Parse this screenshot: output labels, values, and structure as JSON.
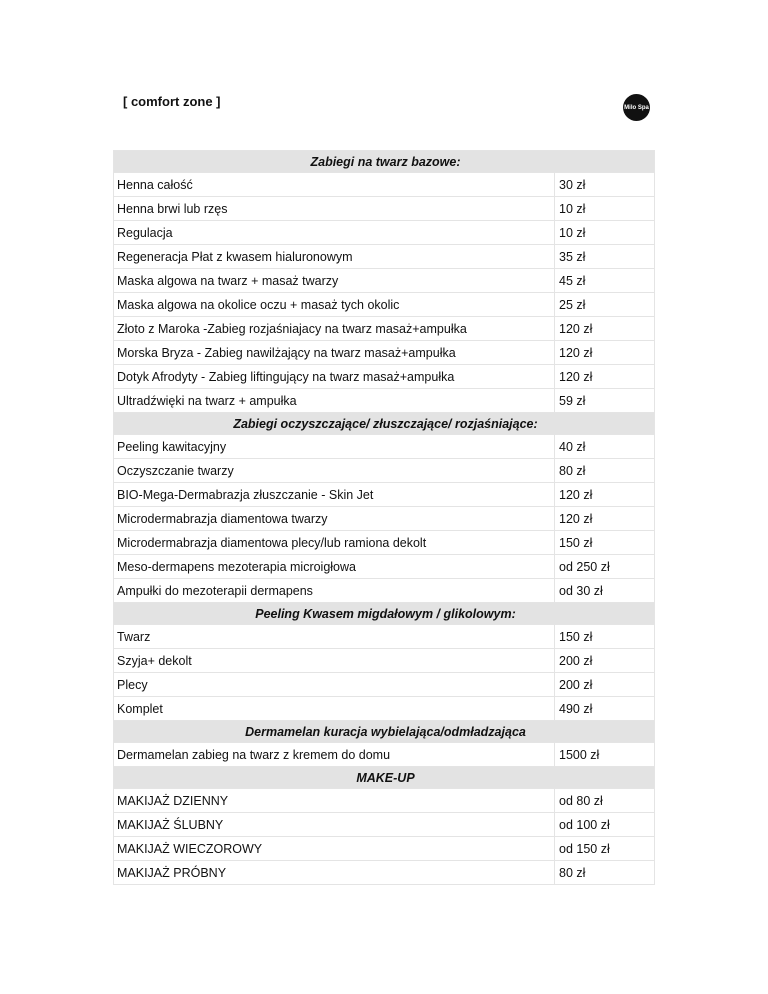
{
  "header": {
    "brand": "[ comfort zone ]",
    "logo": "Milo Spa"
  },
  "sections": [
    {
      "title": "Zabiegi na twarz bazowe:",
      "items": [
        [
          "Henna całość",
          "30 zł"
        ],
        [
          "Henna brwi lub rzęs",
          "10 zł"
        ],
        [
          "Regulacja",
          "10 zł"
        ],
        [
          "Regeneracja Płat z kwasem hialuronowym",
          "35 zł"
        ],
        [
          "Maska algowa na twarz + masaż  twarzy",
          "45 zł"
        ],
        [
          "Maska algowa na okolice oczu + masaż tych okolic",
          "25 zł"
        ],
        [
          "Złoto z Maroka -Zabieg rozjaśniajacy na twarz  masaż+ampułka",
          "120 zł"
        ],
        [
          "Morska Bryza - Zabieg nawilżający na twarz masaż+ampułka",
          "120 zł"
        ],
        [
          "Dotyk Afrodyty - Zabieg liftingujący na twarz masaż+ampułka",
          "120 zł"
        ],
        [
          "Ultradźwięki na twarz + ampułka",
          "59 zł"
        ]
      ]
    },
    {
      "title": "Zabiegi oczyszczające/ złuszczające/ rozjaśniające:",
      "items": [
        [
          "Peeling kawitacyjny",
          "40 zł"
        ],
        [
          "Oczyszczanie twarzy",
          "80 zł"
        ],
        [
          "BIO-Mega-Dermabrazja  złuszczanie - Skin Jet",
          "120 zł"
        ],
        [
          "Microdermabrazja diamentowa twarzy",
          "120 zł"
        ],
        [
          "Microdermabrazja diamentowa plecy/lub ramiona dekolt",
          "150 zł"
        ],
        [
          "Meso-dermapens mezoterapia microigłowa",
          "od 250 zł"
        ],
        [
          "Ampułki do mezoterapii dermapens",
          "od 30 zł"
        ]
      ]
    },
    {
      "title": "Peeling Kwasem migdałowym / glikolowym:",
      "items": [
        [
          "Twarz",
          "150 zł"
        ],
        [
          "Szyja+ dekolt",
          "200 zł"
        ],
        [
          "Plecy",
          "200 zł"
        ],
        [
          "Komplet",
          "490 zł"
        ]
      ]
    },
    {
      "title": "Dermamelan kuracja wybielająca/odmładzająca",
      "items": [
        [
          "Dermamelan zabieg na twarz z kremem do domu",
          "1500 zł"
        ]
      ]
    },
    {
      "title": "MAKE-UP",
      "items": [
        [
          "MAKIJAŻ DZIENNY",
          "od 80 zł"
        ],
        [
          "MAKIJAŻ ŚLUBNY",
          "od 100 zł"
        ],
        [
          "MAKIJAŻ WIECZOROWY",
          "od 150 zł"
        ],
        [
          "MAKIJAŻ PRÓBNY",
          "80 zł"
        ]
      ]
    }
  ]
}
